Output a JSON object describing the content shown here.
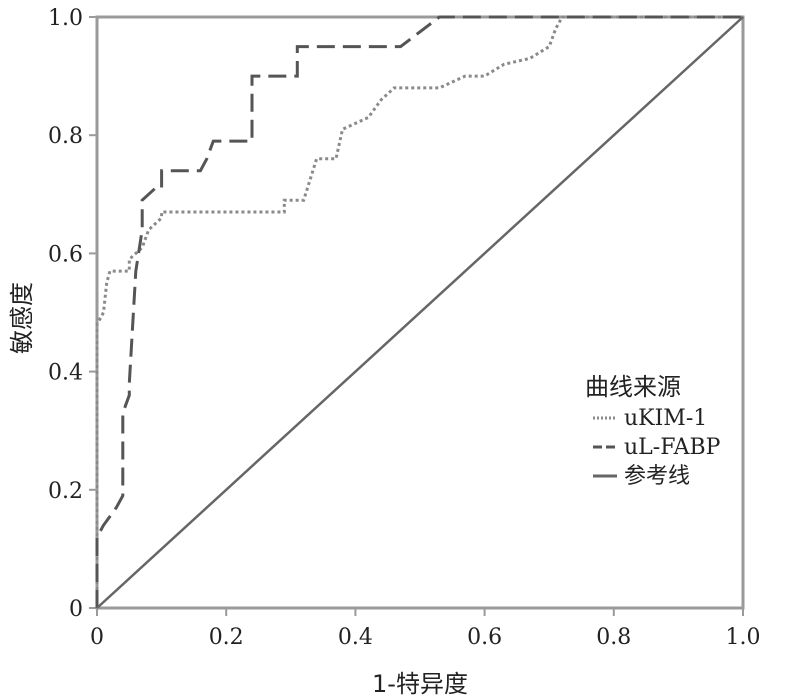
{
  "chart_data": {
    "type": "line",
    "xlabel": "1-特异度",
    "ylabel": "敏感度",
    "xlim": [
      0,
      1
    ],
    "ylim": [
      0,
      1
    ],
    "x_ticks": [
      0,
      0.2,
      0.4,
      0.6,
      0.8,
      1.0
    ],
    "x_tick_labels": [
      "0",
      "0.2",
      "0.4",
      "0.6",
      "0.8",
      "1.0"
    ],
    "y_ticks": [
      0,
      0.2,
      0.4,
      0.6,
      0.8,
      1.0
    ],
    "y_tick_labels": [
      "0",
      "0.2",
      "0.4",
      "0.6",
      "0.8",
      "1.0"
    ],
    "legend": {
      "title": "曲线来源",
      "position": "right"
    },
    "series": [
      {
        "name": "uKIM-1",
        "style": "dotted",
        "color": "#8a8a8a",
        "points": [
          [
            0,
            0
          ],
          [
            0,
            0.48
          ],
          [
            0.01,
            0.5
          ],
          [
            0.015,
            0.55
          ],
          [
            0.02,
            0.57
          ],
          [
            0.035,
            0.57
          ],
          [
            0.05,
            0.57
          ],
          [
            0.05,
            0.59
          ],
          [
            0.07,
            0.61
          ],
          [
            0.08,
            0.64
          ],
          [
            0.1,
            0.66
          ],
          [
            0.1,
            0.67
          ],
          [
            0.29,
            0.67
          ],
          [
            0.29,
            0.69
          ],
          [
            0.32,
            0.69
          ],
          [
            0.34,
            0.76
          ],
          [
            0.37,
            0.76
          ],
          [
            0.38,
            0.81
          ],
          [
            0.42,
            0.83
          ],
          [
            0.44,
            0.86
          ],
          [
            0.46,
            0.88
          ],
          [
            0.53,
            0.88
          ],
          [
            0.57,
            0.9
          ],
          [
            0.6,
            0.9
          ],
          [
            0.63,
            0.92
          ],
          [
            0.67,
            0.93
          ],
          [
            0.7,
            0.95
          ],
          [
            0.71,
            0.98
          ],
          [
            0.72,
            1.0
          ],
          [
            1.0,
            1.0
          ]
        ]
      },
      {
        "name": "uL-FABP",
        "style": "dashed",
        "color": "#555555",
        "points": [
          [
            0,
            0
          ],
          [
            0,
            0.12
          ],
          [
            0.01,
            0.14
          ],
          [
            0.03,
            0.17
          ],
          [
            0.04,
            0.19
          ],
          [
            0.04,
            0.33
          ],
          [
            0.05,
            0.36
          ],
          [
            0.05,
            0.38
          ],
          [
            0.06,
            0.57
          ],
          [
            0.07,
            0.64
          ],
          [
            0.07,
            0.69
          ],
          [
            0.09,
            0.71
          ],
          [
            0.1,
            0.71
          ],
          [
            0.1,
            0.74
          ],
          [
            0.16,
            0.74
          ],
          [
            0.17,
            0.76
          ],
          [
            0.18,
            0.79
          ],
          [
            0.24,
            0.79
          ],
          [
            0.24,
            0.9
          ],
          [
            0.31,
            0.9
          ],
          [
            0.31,
            0.95
          ],
          [
            0.47,
            0.95
          ],
          [
            0.53,
            1.0
          ],
          [
            1.0,
            1.0
          ]
        ]
      },
      {
        "name": "参考线",
        "style": "solid",
        "color": "#666666",
        "points": [
          [
            0,
            0
          ],
          [
            1,
            1
          ]
        ]
      }
    ]
  }
}
